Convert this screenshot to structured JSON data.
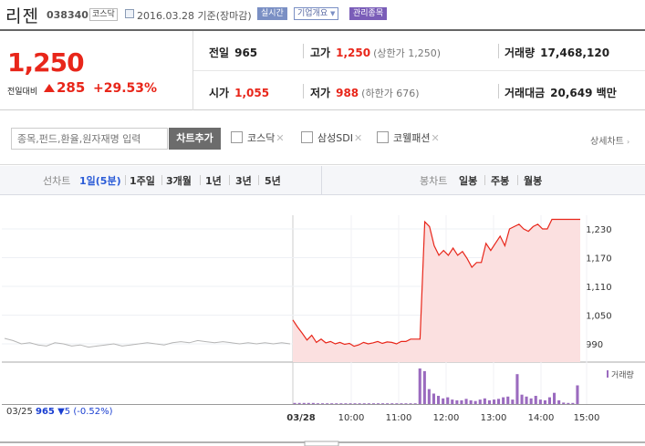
{
  "header": {
    "name": "리젠",
    "code": "038340",
    "market": "코스닥",
    "date_note": "2016.03.28 기준(장마감)",
    "btn_realtime": "실시간",
    "btn_company": "기업개요",
    "btn_managed": "관리종목"
  },
  "quote": {
    "price": "1,250",
    "change_label": "전일대비",
    "change": "285",
    "change_pct": "+29.53%",
    "prev_label": "전일",
    "prev": "965",
    "high_label": "고가",
    "high": "1,250",
    "high_sub": "(상한가 1,250)",
    "volume_label": "거래량",
    "volume": "17,468,120",
    "open_label": "시가",
    "open": "1,055",
    "low_label": "저가",
    "low": "988",
    "low_sub": "(하한가 676)",
    "amount_label": "거래대금",
    "amount": "20,649 백만",
    "colors": {
      "up": "#e8261a",
      "down": "#1a3fd1"
    }
  },
  "compare": {
    "search_placeholder": "종목,펀드,환율,원자재명 입력",
    "add_button": "차트추가",
    "options": [
      "코스닥",
      "삼성SDI",
      "코웰패션"
    ],
    "remove_glyph": "✕",
    "detail_link": "상세차트",
    "detail_arrow": "›"
  },
  "tabs": {
    "line_label": "선차트",
    "line_items": [
      "1일(5분)",
      "1주일",
      "3개월",
      "1년",
      "3년",
      "5년"
    ],
    "line_active": "1일(5분)",
    "candle_label": "봉차트",
    "candle_items": [
      "일봉",
      "주봉",
      "월봉"
    ]
  },
  "chart_data": {
    "type": "line",
    "yticks": [
      "1,230",
      "1,170",
      "1,110",
      "1,050",
      "990"
    ],
    "ytick_values": [
      1230,
      1170,
      1110,
      1050,
      990
    ],
    "xticks": [
      "03/28",
      "10:00",
      "11:00",
      "12:00",
      "13:00",
      "14:00",
      "15:00"
    ],
    "volume_label": "거래량",
    "prev_close_date": "03/25",
    "prev_close": "965",
    "prev_change": "5",
    "prev_change_pct": "(-0.52%)",
    "today_prices": [
      1040,
      1025,
      1012,
      998,
      1008,
      993,
      1000,
      992,
      995,
      990,
      993,
      989,
      991,
      985,
      988,
      993,
      990,
      992,
      995,
      991,
      994,
      993,
      990,
      995,
      995,
      1000,
      1000,
      1000,
      1245,
      1235,
      1195,
      1175,
      1185,
      1175,
      1190,
      1175,
      1183,
      1168,
      1150,
      1160,
      1160,
      1200,
      1185,
      1200,
      1215,
      1195,
      1230,
      1235,
      1240,
      1230,
      1225,
      1235,
      1240,
      1230,
      1230,
      1250,
      1250,
      1250,
      1250,
      1250,
      1250,
      1250
    ],
    "today_volume": [
      3,
      3,
      3,
      3,
      3,
      2,
      2,
      2,
      2,
      2,
      2,
      2,
      2,
      2,
      2,
      2,
      2,
      2,
      2,
      2,
      2,
      2,
      2,
      2,
      2,
      2,
      2,
      95,
      88,
      40,
      28,
      22,
      15,
      18,
      12,
      10,
      10,
      14,
      10,
      8,
      12,
      15,
      10,
      12,
      14,
      18,
      20,
      12,
      80,
      25,
      20,
      15,
      22,
      12,
      10,
      18,
      30,
      10,
      4,
      3,
      3,
      50
    ],
    "prev_prices": [
      1000,
      998,
      995,
      996,
      994,
      993,
      996,
      995,
      993,
      994,
      992,
      993,
      994,
      995,
      993,
      994,
      995,
      996,
      995,
      994,
      996,
      997,
      996,
      998,
      997,
      996,
      997,
      996,
      995,
      996,
      995,
      996,
      995,
      996,
      995
    ]
  }
}
